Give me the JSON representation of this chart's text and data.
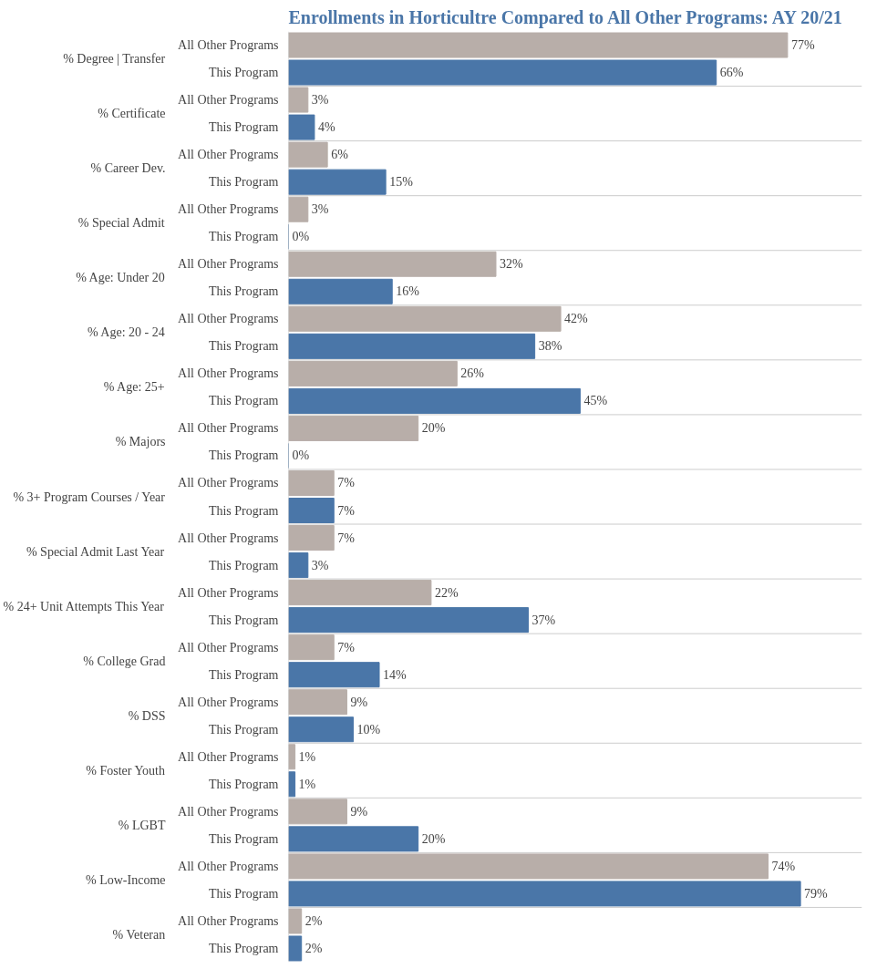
{
  "chart_data": {
    "type": "bar",
    "orientation": "horizontal",
    "title": "Enrollments in Horticultre Compared to All Other Programs: AY 20/21",
    "categories": [
      "% Degree | Transfer",
      "% Certificate",
      "% Career Dev.",
      "% Special Admit",
      "% Age: Under 20",
      "% Age: 20 - 24",
      "% Age: 25+",
      "% Majors",
      "% 3+ Program Courses / Year",
      "% Special Admit Last Year",
      "% 24+ Unit Attempts This Year",
      "% College Grad",
      "% DSS",
      "% Foster Youth",
      "% LGBT",
      "% Low-Income",
      "% Veteran"
    ],
    "series": [
      {
        "name": "All Other Programs",
        "color": "#b8aea9",
        "values": [
          77,
          3,
          6,
          3,
          32,
          42,
          26,
          20,
          7,
          7,
          22,
          7,
          9,
          1,
          9,
          74,
          2
        ],
        "value_labels": [
          "77%",
          "3%",
          "6%",
          "3%",
          "32%",
          "42%",
          "26%",
          "20%",
          "7%",
          "7%",
          "22%",
          "7%",
          "9%",
          "1%",
          "9%",
          "74%",
          "2%"
        ]
      },
      {
        "name": "This Program",
        "color": "#4a76a8",
        "values": [
          66,
          4,
          15,
          0,
          16,
          38,
          45,
          0,
          7,
          3,
          37,
          14,
          10,
          1,
          20,
          79,
          2
        ],
        "value_labels": [
          "66%",
          "4%",
          "15%",
          "0%",
          "16%",
          "38%",
          "45%",
          "0%",
          "7%",
          "3%",
          "37%",
          "14%",
          "10%",
          "1%",
          "20%",
          "79%",
          "2%"
        ]
      }
    ],
    "grid": false
  }
}
